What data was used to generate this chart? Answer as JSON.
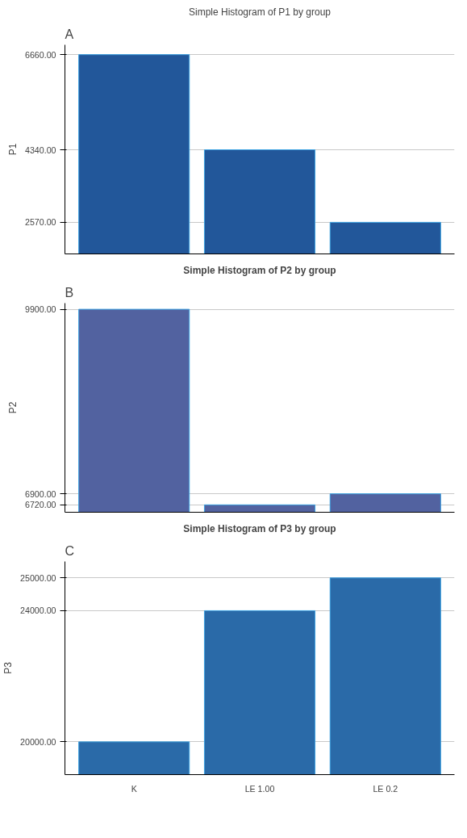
{
  "chart_data": [
    {
      "type": "bar",
      "title": "Simple Histogram of P1 by group",
      "ylabel": "P1",
      "annotations": [
        "A"
      ],
      "categories": [
        null,
        null,
        null
      ],
      "values": [
        6660,
        4340,
        2570
      ],
      "color": "#22579a",
      "ylim": [
        1800,
        6900
      ],
      "yticks": [
        {
          "value": 2570,
          "label": "2570.00"
        },
        {
          "value": 4340,
          "label": "4340.00"
        },
        {
          "value": 6660,
          "label": "6660.00"
        }
      ],
      "grid": "y",
      "tick_labels": "y"
    },
    {
      "type": "bar",
      "title": "Simple Histogram of P2 by group",
      "ylabel": "P2",
      "annotations": [
        "B"
      ],
      "categories": [
        null,
        null,
        null
      ],
      "values": [
        9900,
        6720,
        6900
      ],
      "color": "#5262a0",
      "ylim": [
        6600,
        10000
      ],
      "yticks": [
        {
          "value": 6720,
          "label": "6720.00"
        },
        {
          "value": 6900,
          "label": "6900.00"
        },
        {
          "value": 9900,
          "label": "9900.00"
        }
      ],
      "grid": "y",
      "tick_labels": "y"
    },
    {
      "type": "bar",
      "title": "Simple Histogram of P3 by group",
      "ylabel": "P3",
      "annotations": [
        "C"
      ],
      "categories": [
        "K",
        "LE 1.00",
        "LE 0.2"
      ],
      "values": [
        20000,
        24000,
        25000
      ],
      "color": "#2a6aa8",
      "ylim": [
        19000,
        25500
      ],
      "yticks": [
        {
          "value": 20000,
          "label": "20000.00"
        },
        {
          "value": 24000,
          "label": "24000.00"
        },
        {
          "value": 25000,
          "label": "25000.00"
        }
      ],
      "grid": "y"
    }
  ]
}
